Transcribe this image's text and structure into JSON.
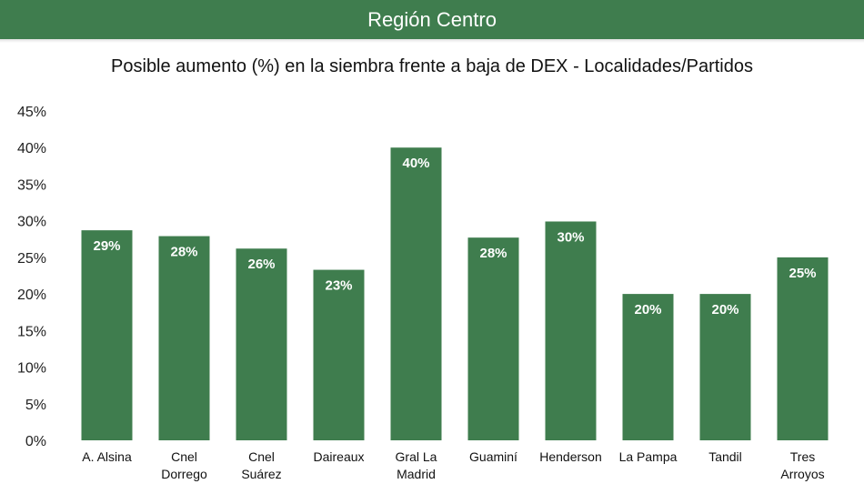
{
  "header": {
    "title": "Región Centro"
  },
  "chart_data": {
    "type": "bar",
    "title": "Posible aumento (%) en la siembra frente a baja de DEX - Localidades/Partidos",
    "xlabel": "",
    "ylabel": "",
    "ylim": [
      0,
      45
    ],
    "yticks": [
      "0%",
      "5%",
      "10%",
      "15%",
      "20%",
      "25%",
      "30%",
      "35%",
      "40%",
      "45%"
    ],
    "categories": [
      [
        "A. Alsina"
      ],
      [
        "Cnel",
        "Dorrego"
      ],
      [
        "Cnel",
        "Suárez"
      ],
      [
        "Daireaux"
      ],
      [
        "Gral La",
        "Madrid"
      ],
      [
        "Guaminí"
      ],
      [
        "Henderson"
      ],
      [
        "La Pampa"
      ],
      [
        "Tandil"
      ],
      [
        "Tres",
        "Arroyos"
      ]
    ],
    "values": [
      28.7,
      27.9,
      26.2,
      23.3,
      40.0,
      27.7,
      29.9,
      20.0,
      20.0,
      25.0
    ],
    "data_labels": [
      "29%",
      "28%",
      "26%",
      "23%",
      "40%",
      "28%",
      "30%",
      "20%",
      "20%",
      "25%"
    ],
    "grid": false,
    "bar_color": "#3f7d4e",
    "legend": "none"
  }
}
